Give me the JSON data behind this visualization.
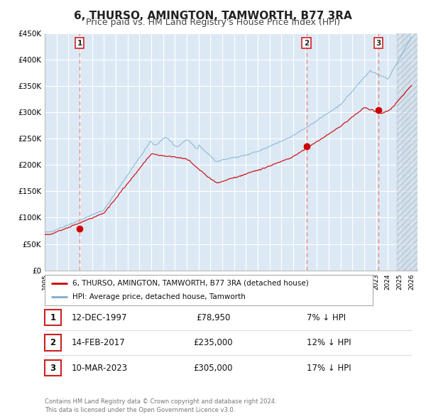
{
  "title": "6, THURSO, AMINGTON, TAMWORTH, B77 3RA",
  "subtitle": "Price paid vs. HM Land Registry's House Price Index (HPI)",
  "title_fontsize": 11,
  "subtitle_fontsize": 9,
  "background_color": "#ffffff",
  "plot_bg_color": "#dce9f5",
  "grid_color": "#ffffff",
  "xmin": 1995.0,
  "xmax": 2026.5,
  "ymin": 0,
  "ymax": 450000,
  "yticks": [
    0,
    50000,
    100000,
    150000,
    200000,
    250000,
    300000,
    350000,
    400000,
    450000
  ],
  "ytick_labels": [
    "£0",
    "£50K",
    "£100K",
    "£150K",
    "£200K",
    "£250K",
    "£300K",
    "£350K",
    "£400K",
    "£450K"
  ],
  "xticks": [
    1995,
    1996,
    1997,
    1998,
    1999,
    2000,
    2001,
    2002,
    2003,
    2004,
    2005,
    2006,
    2007,
    2008,
    2009,
    2010,
    2011,
    2012,
    2013,
    2014,
    2015,
    2016,
    2017,
    2018,
    2019,
    2020,
    2021,
    2022,
    2023,
    2024,
    2025,
    2026
  ],
  "sale1_x": 1997.94,
  "sale1_y": 78950,
  "sale1_label": "1",
  "sale1_date": "12-DEC-1997",
  "sale1_price": "£78,950",
  "sale1_pct": "7% ↓ HPI",
  "sale2_x": 2017.12,
  "sale2_y": 235000,
  "sale2_label": "2",
  "sale2_date": "14-FEB-2017",
  "sale2_price": "£235,000",
  "sale2_pct": "12% ↓ HPI",
  "sale3_x": 2023.19,
  "sale3_y": 305000,
  "sale3_label": "3",
  "sale3_date": "10-MAR-2023",
  "sale3_price": "£305,000",
  "sale3_pct": "17% ↓ HPI",
  "property_line_color": "#cc0000",
  "hpi_line_color": "#7aadcc",
  "marker_color": "#cc0000",
  "vline_color": "#ee8888",
  "legend_label1": "6, THURSO, AMINGTON, TAMWORTH, B77 3RA (detached house)",
  "legend_label2": "HPI: Average price, detached house, Tamworth",
  "footer1": "Contains HM Land Registry data © Crown copyright and database right 2024.",
  "footer2": "This data is licensed under the Open Government Licence v3.0.",
  "hatched_region_start": 2024.75
}
